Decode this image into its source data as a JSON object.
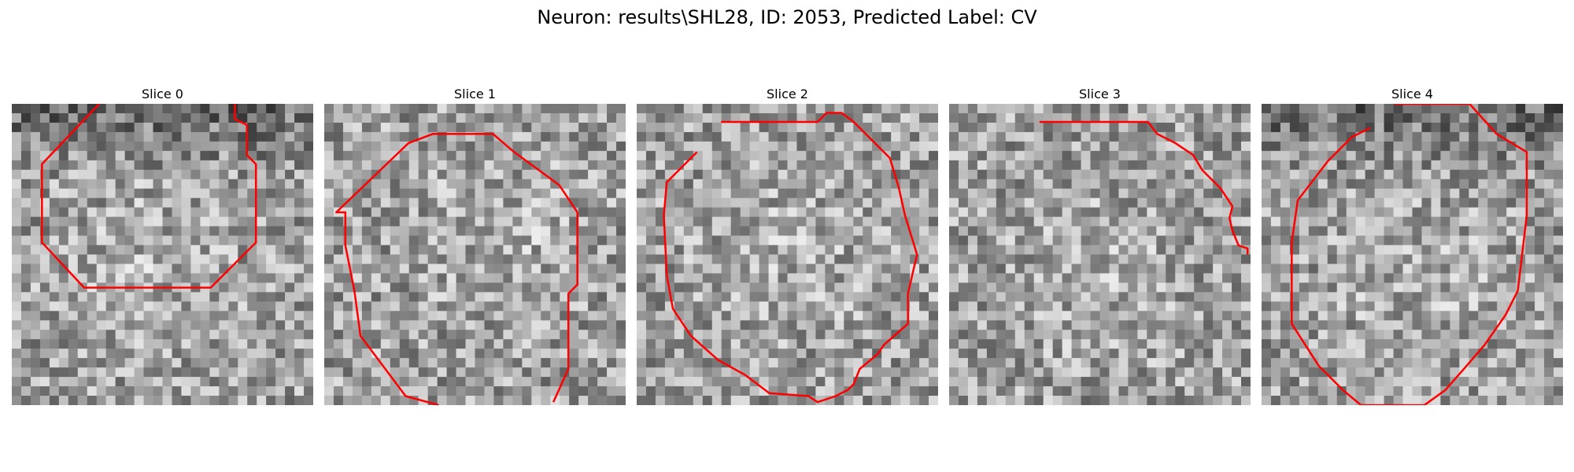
{
  "figure": {
    "title": "Neuron: results\\SHL28, ID: 2053, Predicted Label: CV",
    "contour_color": "#ff0000"
  },
  "panels": [
    {
      "title": "Slice 0",
      "seed": 11,
      "bright_center": [
        0.45,
        0.55
      ],
      "dark_band": true,
      "contour": [
        [
          0.29,
          0.0
        ],
        [
          0.1,
          0.2
        ],
        [
          0.1,
          0.46
        ],
        [
          0.24,
          0.61
        ],
        [
          0.66,
          0.61
        ],
        [
          0.81,
          0.46
        ],
        [
          0.81,
          0.2
        ],
        [
          0.78,
          0.17
        ],
        [
          0.78,
          0.07
        ],
        [
          0.74,
          0.05
        ],
        [
          0.74,
          0.0
        ]
      ]
    },
    {
      "title": "Slice 1",
      "seed": 27,
      "bright_center": [
        0.62,
        0.42
      ],
      "dark_band": false,
      "contour": [
        [
          0.38,
          1.0
        ],
        [
          0.27,
          0.97
        ],
        [
          0.12,
          0.77
        ],
        [
          0.1,
          0.62
        ],
        [
          0.07,
          0.47
        ],
        [
          0.07,
          0.36
        ],
        [
          0.04,
          0.36
        ],
        [
          0.28,
          0.13
        ],
        [
          0.36,
          0.1
        ],
        [
          0.56,
          0.1
        ],
        [
          0.63,
          0.16
        ],
        [
          0.78,
          0.27
        ],
        [
          0.84,
          0.36
        ],
        [
          0.84,
          0.6
        ],
        [
          0.81,
          0.63
        ],
        [
          0.81,
          0.88
        ],
        [
          0.76,
          0.99
        ]
      ]
    },
    {
      "title": "Slice 2",
      "seed": 43,
      "bright_center": [
        0.5,
        0.5
      ],
      "dark_band": false,
      "contour": [
        [
          0.28,
          0.06
        ],
        [
          0.6,
          0.06
        ],
        [
          0.63,
          0.03
        ],
        [
          0.68,
          0.03
        ],
        [
          0.72,
          0.06
        ],
        [
          0.84,
          0.18
        ],
        [
          0.87,
          0.28
        ],
        [
          0.89,
          0.37
        ],
        [
          0.93,
          0.5
        ],
        [
          0.9,
          0.63
        ],
        [
          0.9,
          0.73
        ],
        [
          0.82,
          0.8
        ],
        [
          0.8,
          0.83
        ],
        [
          0.74,
          0.88
        ],
        [
          0.72,
          0.93
        ],
        [
          0.7,
          0.95
        ],
        [
          0.66,
          0.97
        ],
        [
          0.6,
          0.99
        ],
        [
          0.57,
          0.97
        ],
        [
          0.44,
          0.96
        ],
        [
          0.36,
          0.9
        ],
        [
          0.27,
          0.85
        ],
        [
          0.18,
          0.77
        ],
        [
          0.12,
          0.68
        ],
        [
          0.1,
          0.57
        ],
        [
          0.09,
          0.37
        ],
        [
          0.1,
          0.26
        ],
        [
          0.2,
          0.16
        ]
      ]
    },
    {
      "title": "Slice 3",
      "seed": 59,
      "bright_center": [
        0.5,
        0.55
      ],
      "dark_band": false,
      "contour": [
        [
          0.3,
          0.06
        ],
        [
          0.66,
          0.06
        ],
        [
          0.69,
          0.1
        ],
        [
          0.75,
          0.13
        ],
        [
          0.81,
          0.17
        ],
        [
          0.84,
          0.22
        ],
        [
          0.87,
          0.25
        ],
        [
          0.9,
          0.28
        ],
        [
          0.94,
          0.34
        ],
        [
          0.93,
          0.38
        ],
        [
          0.94,
          0.42
        ],
        [
          0.96,
          0.47
        ],
        [
          0.99,
          0.48
        ],
        [
          0.99,
          0.5
        ]
      ]
    },
    {
      "title": "Slice 4",
      "seed": 71,
      "bright_center": [
        0.5,
        0.6
      ],
      "dark_band": true,
      "contour": [
        [
          0.44,
          0.0
        ],
        [
          0.69,
          0.0
        ],
        [
          0.78,
          0.1
        ],
        [
          0.88,
          0.16
        ],
        [
          0.88,
          0.37
        ],
        [
          0.85,
          0.62
        ],
        [
          0.81,
          0.7
        ],
        [
          0.74,
          0.8
        ],
        [
          0.68,
          0.87
        ],
        [
          0.61,
          0.95
        ],
        [
          0.54,
          1.0
        ],
        [
          0.33,
          1.0
        ],
        [
          0.27,
          0.95
        ],
        [
          0.19,
          0.87
        ],
        [
          0.1,
          0.73
        ],
        [
          0.1,
          0.46
        ],
        [
          0.12,
          0.32
        ],
        [
          0.22,
          0.19
        ],
        [
          0.3,
          0.11
        ],
        [
          0.36,
          0.08
        ]
      ]
    }
  ]
}
